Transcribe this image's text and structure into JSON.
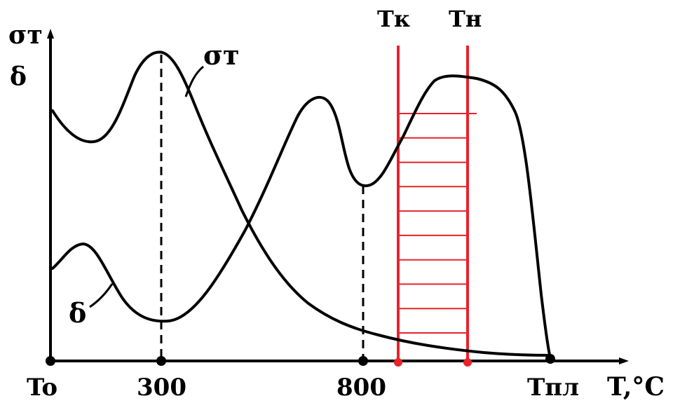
{
  "chart_data": {
    "type": "line",
    "title": "",
    "xlabel": "T,°C",
    "ylabel": [
      "σт",
      "δ"
    ],
    "x_ticks": [
      {
        "label": "To"
      },
      {
        "label": "300"
      },
      {
        "label": "800"
      },
      {
        "label": "Tпл"
      }
    ],
    "series": [
      {
        "name": "σт",
        "label": "σт",
        "shape": "hump at 300, falling toward Tпл"
      },
      {
        "name": "δ",
        "label": "δ",
        "shape": "dip at 300, peaks near 700 and 950, local minimum at 800, drops to 0 at Tпл"
      }
    ],
    "band": {
      "start_label": "Tк",
      "end_label": "Tн",
      "hatch_lines": 10
    },
    "grid": false,
    "colors": {
      "curves": "#000000",
      "band": "#e8232a",
      "axes": "#000000"
    }
  }
}
